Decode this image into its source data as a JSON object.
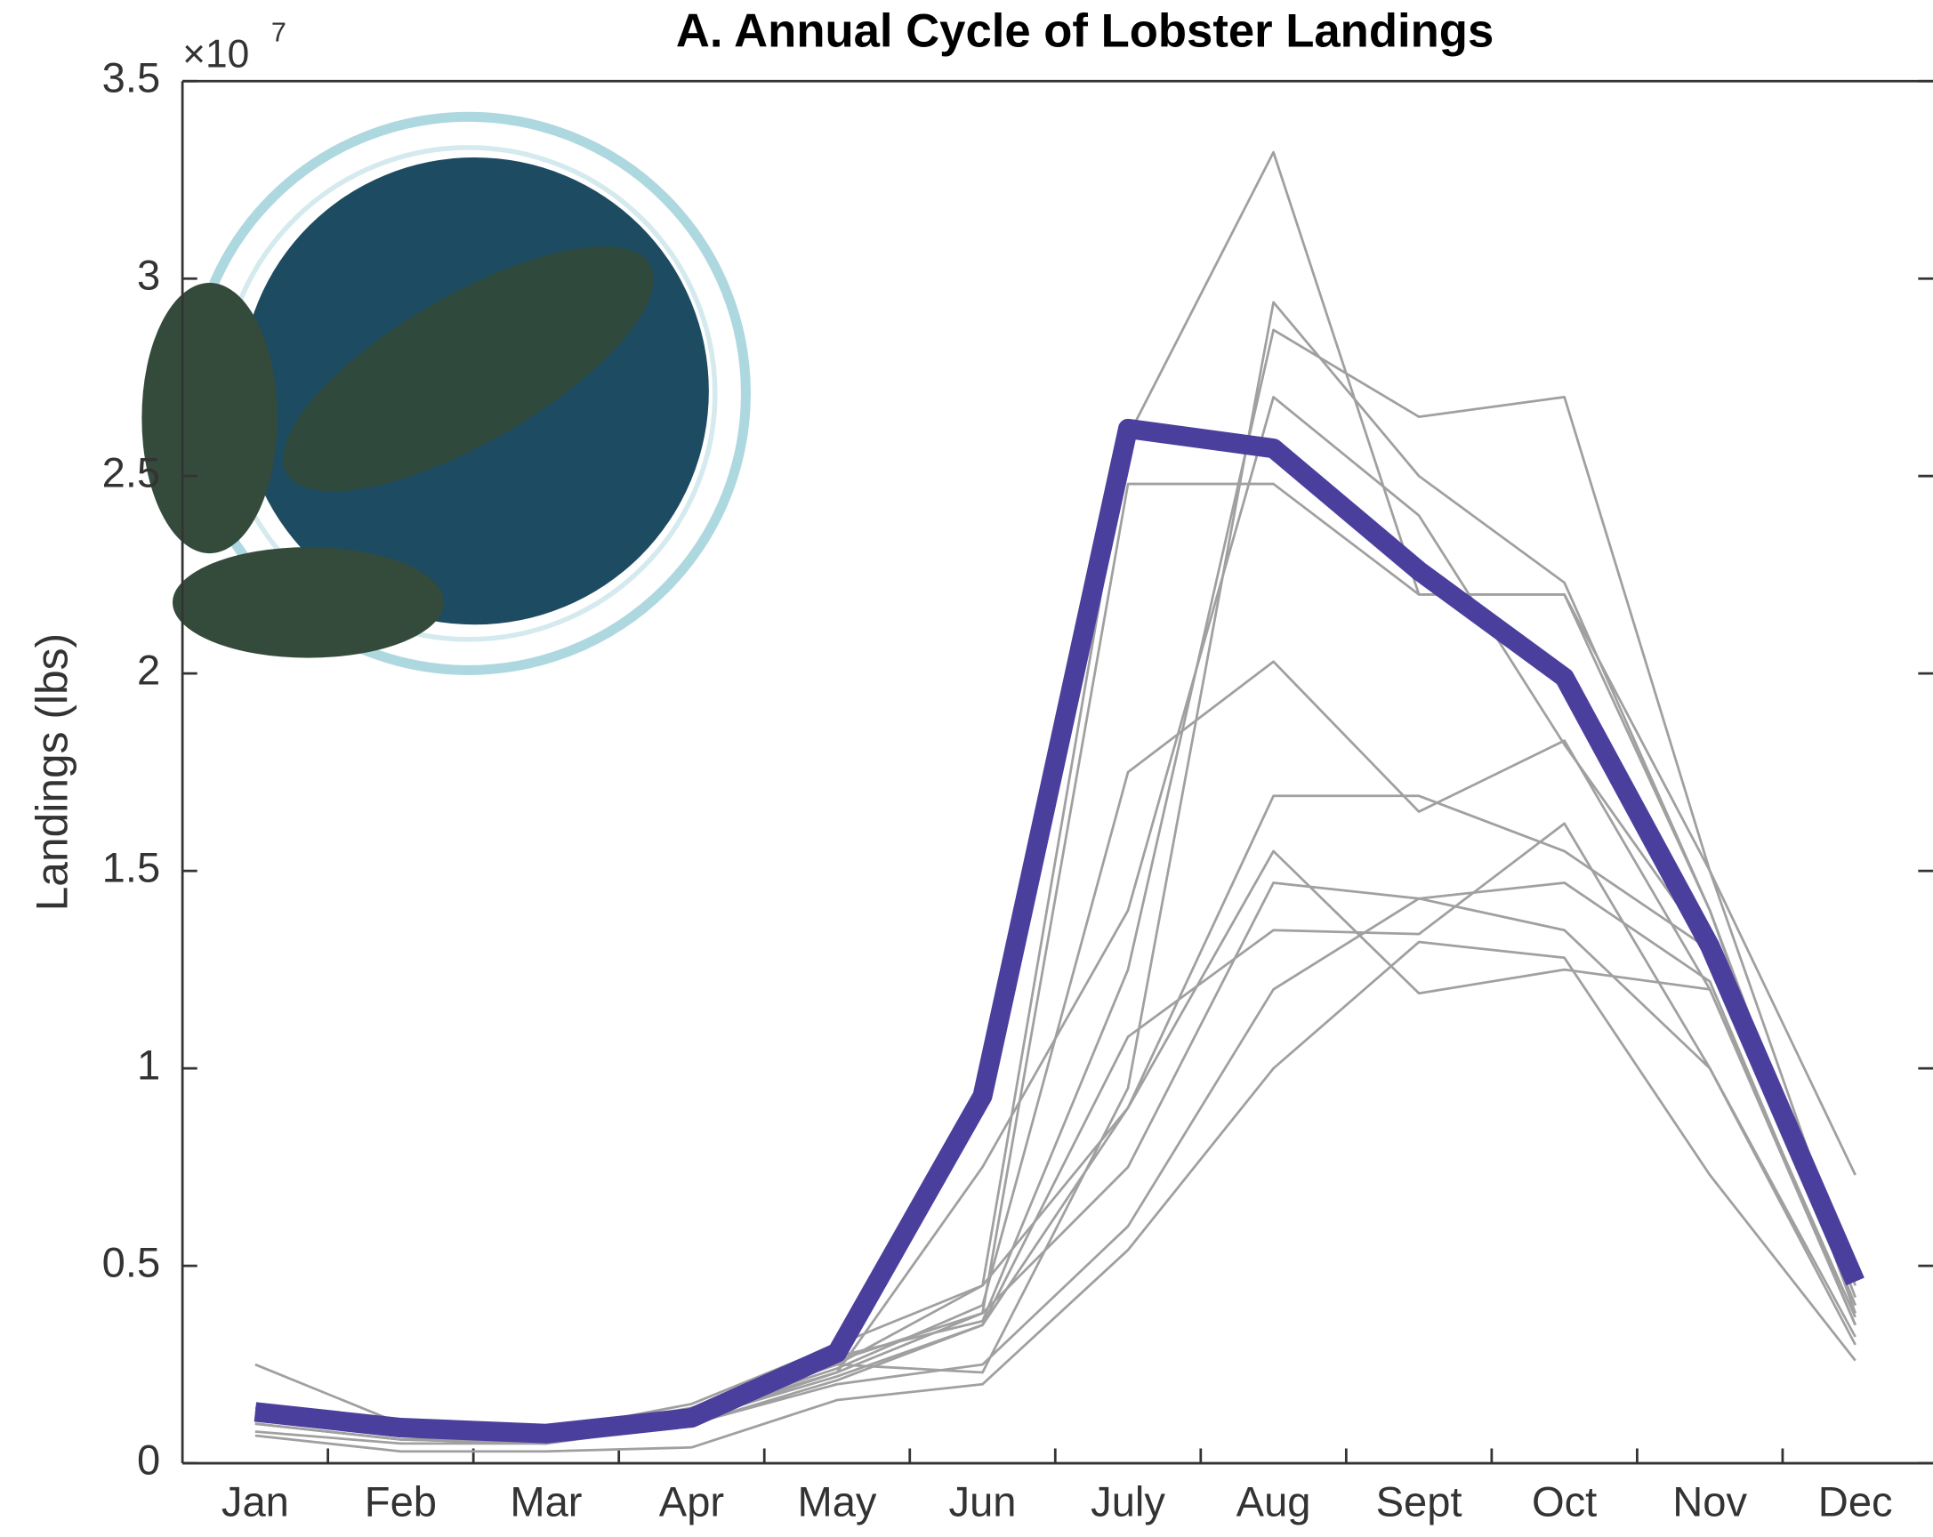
{
  "chart_data": {
    "type": "line",
    "title": "A. Annual Cycle of Lobster Landings",
    "y_label": "Landings (lbs)",
    "y_multiplier": {
      "base": "×10",
      "exponent": "7"
    },
    "categories": [
      "Jan",
      "Feb",
      "Mar",
      "Apr",
      "May",
      "Jun",
      "July",
      "Aug",
      "Sept",
      "Oct",
      "Nov",
      "Dec"
    ],
    "ylim": [
      0,
      35000000
    ],
    "yticks": [
      0,
      {
        "value": 5000000,
        "label": "0.5"
      },
      {
        "value": 10000000,
        "label": "1"
      },
      {
        "value": 15000000,
        "label": "1.5"
      },
      {
        "value": 20000000,
        "label": "2"
      },
      {
        "value": 25000000,
        "label": "2.5"
      },
      {
        "value": 30000000,
        "label": "3"
      },
      {
        "value": 35000000,
        "label": "3.5"
      }
    ],
    "series": [
      {
        "color": "#a0a0a0",
        "values": [
          2500000,
          1000000,
          800000,
          1500000,
          3000000,
          4500000,
          26000000,
          33200000,
          22000000,
          22000000,
          15000000,
          7300000
        ]
      },
      {
        "color": "#a0a0a0",
        "values": [
          700000,
          300000,
          300000,
          400000,
          1600000,
          2000000,
          5400000,
          10000000,
          13200000,
          12800000,
          7300000,
          2600000
        ]
      },
      {
        "color": "#a0a0a0",
        "values": [
          800000,
          500000,
          500000,
          1000000,
          2000000,
          2500000,
          6000000,
          12000000,
          14300000,
          13500000,
          10000000,
          3000000
        ]
      },
      {
        "color": "#a0a0a0",
        "values": [
          1000000,
          600000,
          500000,
          1100000,
          2200000,
          3500000,
          10800000,
          13500000,
          13400000,
          16200000,
          10000000,
          3200000
        ]
      },
      {
        "color": "#a0a0a0",
        "values": [
          1200000,
          700000,
          600000,
          1200000,
          2400000,
          4000000,
          17500000,
          20300000,
          16500000,
          18300000,
          12000000,
          3500000
        ]
      },
      {
        "color": "#a0a0a0",
        "values": [
          1300000,
          800000,
          700000,
          1300000,
          2500000,
          4500000,
          9000000,
          15500000,
          11900000,
          12500000,
          12000000,
          3700000
        ]
      },
      {
        "color": "#a0a0a0",
        "values": [
          1100000,
          700000,
          600000,
          1200000,
          2300000,
          7500000,
          14000000,
          27000000,
          24000000,
          18200000,
          13000000,
          4000000
        ]
      },
      {
        "color": "#a0a0a0",
        "values": [
          1200000,
          800000,
          700000,
          1300000,
          2600000,
          3800000,
          24800000,
          24800000,
          22000000,
          22000000,
          14000000,
          4200000
        ]
      },
      {
        "color": "#a0a0a0",
        "values": [
          1400000,
          900000,
          800000,
          1400000,
          2700000,
          3600000,
          12500000,
          28700000,
          26500000,
          27000000,
          15000000,
          4500000
        ]
      },
      {
        "color": "#a0a0a0",
        "values": [
          1300000,
          800000,
          700000,
          1300000,
          2500000,
          2300000,
          9500000,
          29400000,
          25000000,
          22300000,
          14000000,
          3800000
        ]
      },
      {
        "color": "#a0a0a0",
        "values": [
          1000000,
          600000,
          500000,
          1000000,
          2100000,
          3500000,
          9000000,
          16900000,
          16900000,
          15500000,
          13000000,
          4000000
        ]
      },
      {
        "color": "#a0a0a0",
        "values": [
          1000000,
          600000,
          600000,
          1100000,
          2300000,
          3800000,
          7500000,
          14700000,
          14300000,
          14700000,
          12200000,
          3500000
        ]
      },
      {
        "color": "#4b3f9e",
        "width": 16,
        "values": [
          1300000,
          900000,
          750000,
          1150000,
          2800000,
          9300000,
          26200000,
          25700000,
          22600000,
          19900000,
          13100000,
          4600000
        ]
      }
    ]
  }
}
